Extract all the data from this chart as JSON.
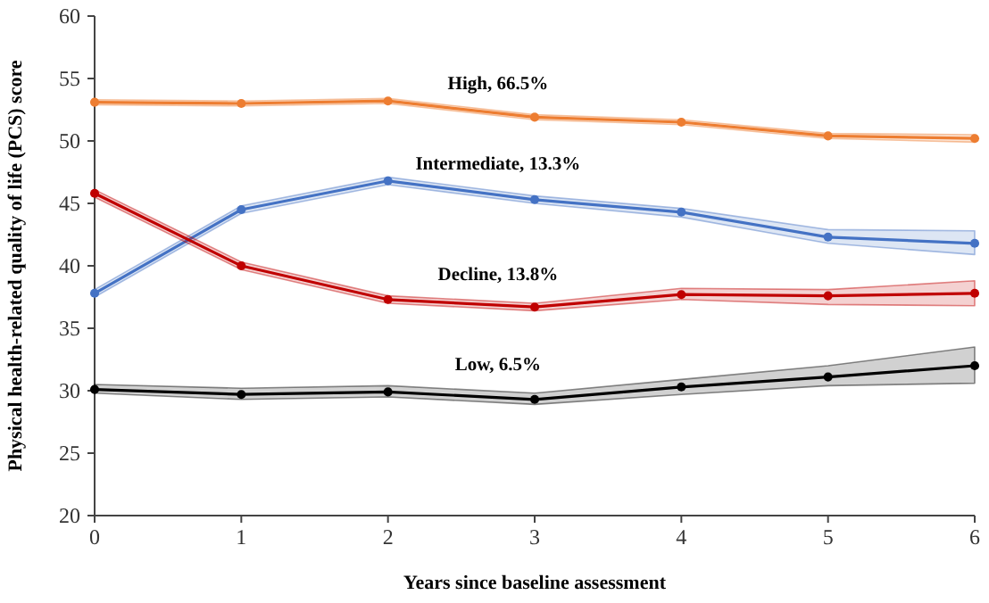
{
  "chart_data": {
    "type": "line",
    "xlabel": "Years since baseline assessment",
    "ylabel": "Physical health-related quality of life (PCS)  score",
    "x": [
      0,
      1,
      2,
      3,
      4,
      5,
      6
    ],
    "xlim": [
      0,
      6
    ],
    "xticks": [
      0,
      1,
      2,
      3,
      4,
      5,
      6
    ],
    "ylim": [
      20,
      60
    ],
    "yticks": [
      20,
      25,
      30,
      35,
      40,
      45,
      50,
      55,
      60
    ],
    "grid": false,
    "marker": "circle",
    "line_style": "solid",
    "series": [
      {
        "color": "#ed7d31",
        "values": [
          53.1,
          53.0,
          53.2,
          51.9,
          51.5,
          50.4,
          50.2
        ],
        "lower": [
          52.9,
          52.8,
          53.0,
          51.7,
          51.3,
          50.2,
          49.9
        ],
        "upper": [
          53.3,
          53.2,
          53.4,
          52.1,
          51.7,
          50.6,
          50.5
        ]
      },
      {
        "color": "#4472c4",
        "values": [
          37.8,
          44.5,
          46.8,
          45.3,
          44.3,
          42.3,
          41.8
        ],
        "lower": [
          37.5,
          44.2,
          46.5,
          45.0,
          43.9,
          41.8,
          40.9
        ],
        "upper": [
          38.1,
          44.8,
          47.1,
          45.6,
          44.6,
          42.9,
          42.8
        ]
      },
      {
        "color": "#c00000",
        "values": [
          45.8,
          40.0,
          37.3,
          36.7,
          37.7,
          37.6,
          37.8
        ],
        "lower": [
          45.5,
          39.7,
          37.0,
          36.4,
          37.3,
          36.9,
          36.8
        ],
        "upper": [
          46.1,
          40.3,
          37.6,
          37.0,
          38.2,
          38.1,
          38.8
        ]
      },
      {
        "color": "#000000",
        "values": [
          30.1,
          29.7,
          29.9,
          29.3,
          30.3,
          31.1,
          32.0
        ],
        "lower": [
          29.8,
          29.3,
          29.5,
          28.9,
          29.7,
          30.4,
          30.6
        ],
        "upper": [
          30.5,
          30.2,
          30.4,
          29.8,
          30.9,
          32.0,
          33.5
        ]
      }
    ],
    "annotations": [
      "High, 66.5%",
      "Intermediate, 13.3%",
      "Decline, 13.8%",
      "Low, 6.5%"
    ]
  }
}
